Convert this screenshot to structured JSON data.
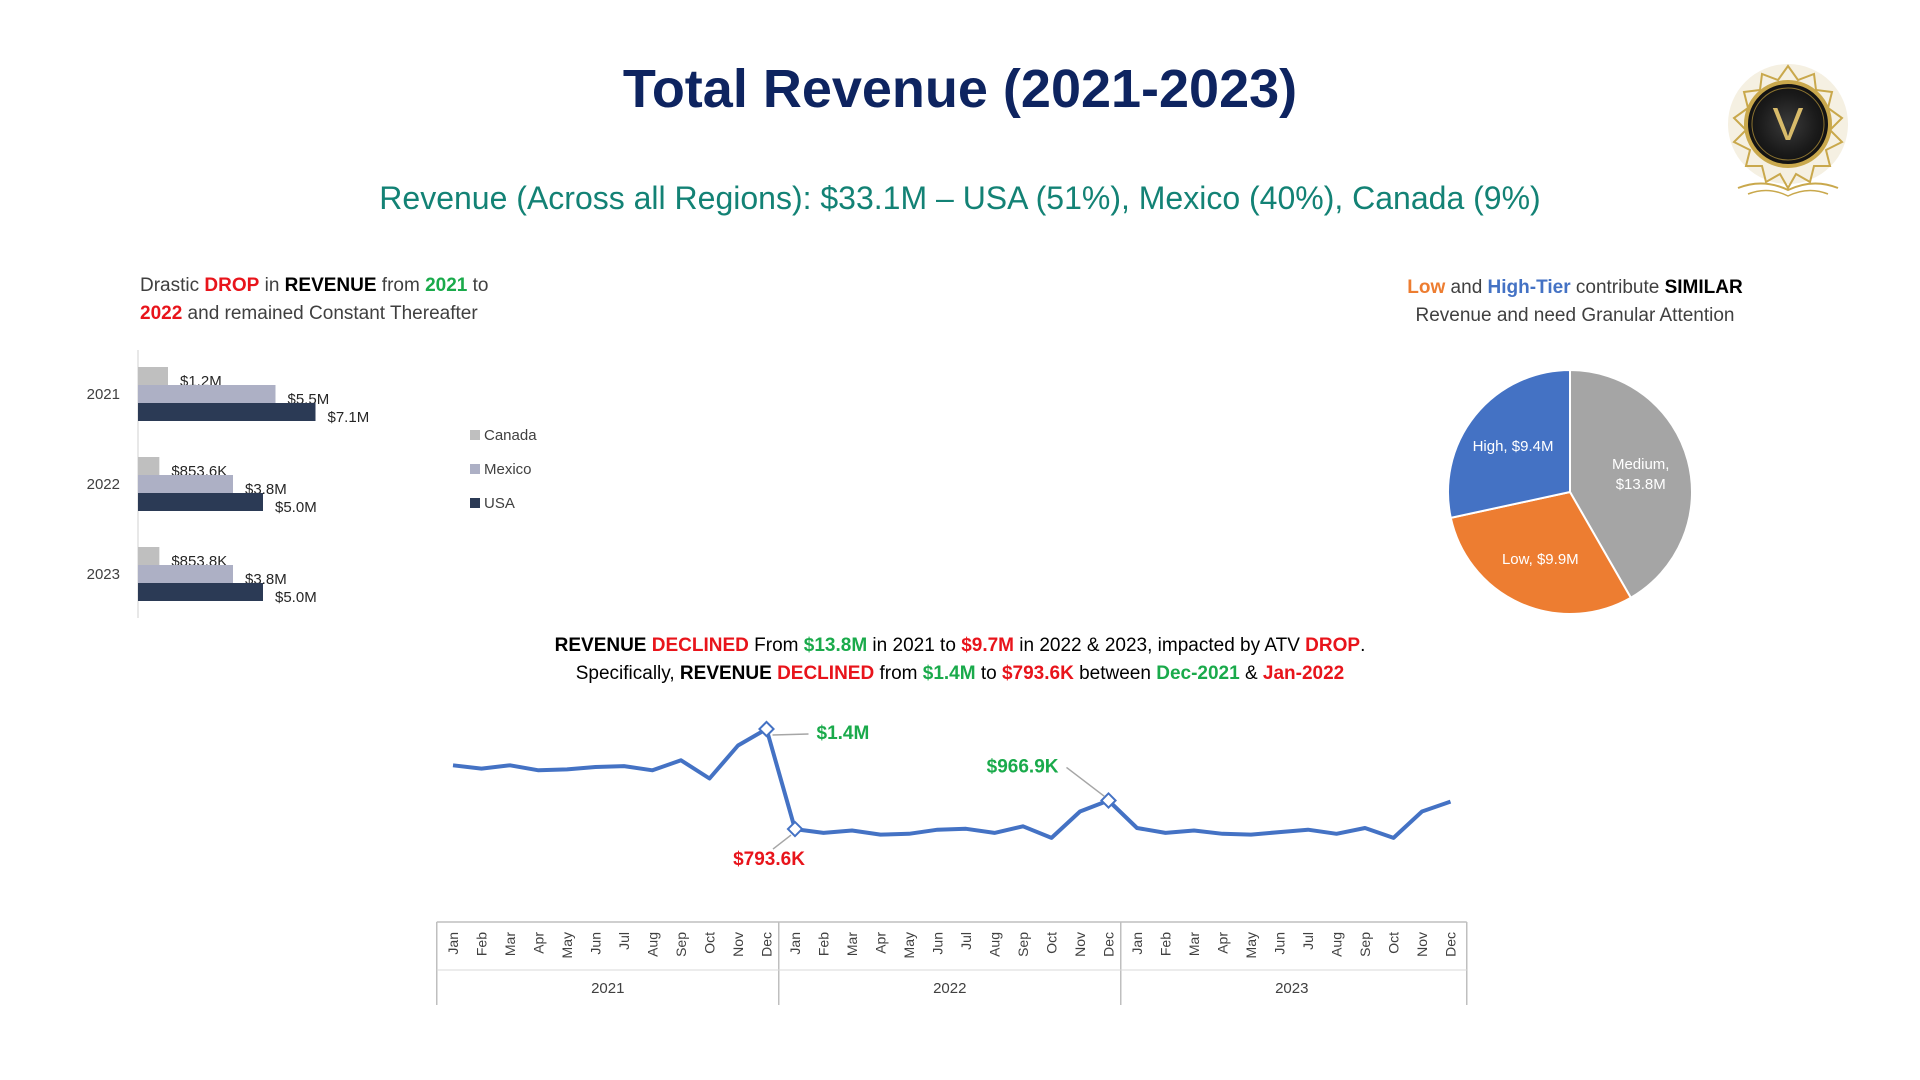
{
  "title": "Total Revenue (2021-2023)",
  "subtitle": "Revenue (Across all Regions): $33.1M – USA (51%), Mexico (40%), Canada (9%)",
  "logo": {
    "letter": "V",
    "icon": "laurel-v-logo-icon"
  },
  "bar_caption": {
    "t1": "Drastic ",
    "t2": "DROP",
    "t3": " in ",
    "t4": "REVENUE",
    "t5": " from ",
    "t6": "2021",
    "t7": " to",
    "t8": "2022",
    "t9": " and remained Constant Thereafter"
  },
  "pie_caption": {
    "t1": "Low",
    "t2": " and ",
    "t3": "High-Tier",
    "t4": " contribute ",
    "t5": "SIMILAR",
    "t6": "Revenue and need Granular Attention"
  },
  "line_caption": {
    "a1": "REVENUE",
    "a2": " ",
    "a3": "DECLINED",
    "a4": " From ",
    "a5": "$13.8M",
    "a6": " in 2021 to ",
    "a7": "$9.7M",
    "a8": " in 2022 & 2023, impacted by ATV ",
    "a9": "DROP",
    "a10": ".",
    "b1": "Specifically, ",
    "b2": "REVENUE",
    "b3": " ",
    "b4": "DECLINED",
    "b5": " from ",
    "b6": "$1.4M",
    "b7": " to ",
    "b8": "$793.6K",
    "b9": " between ",
    "b10": "Dec-2021",
    "b11": " & ",
    "b12": "Jan-2022"
  },
  "colors": {
    "title": "#0e2460",
    "subtitle": "#138275",
    "canada": "#bfbfbf",
    "mexico": "#adb0c5",
    "usa": "#2b3a55",
    "line": "#4472c4",
    "pie_high": "#4472c4",
    "pie_low": "#ed7d31",
    "pie_medium": "#a5a5a5",
    "red": "#e8141b",
    "green": "#1aaa4b"
  },
  "chart_data": [
    {
      "type": "bar",
      "orientation": "horizontal",
      "categories": [
        "2021",
        "2022",
        "2023"
      ],
      "series": [
        {
          "name": "Canada",
          "values": [
            1.2,
            0.8536,
            0.8538
          ],
          "labels": [
            "$1.2M",
            "$853.6K",
            "$853.8K"
          ]
        },
        {
          "name": "Mexico",
          "values": [
            5.5,
            3.8,
            3.8
          ],
          "labels": [
            "$5.5M",
            "$3.8M",
            "$3.8M"
          ]
        },
        {
          "name": "USA",
          "values": [
            7.1,
            5.0,
            5.0
          ],
          "labels": [
            "$7.1M",
            "$5.0M",
            "$5.0M"
          ]
        }
      ],
      "legend_position": "right",
      "xlim": [
        0,
        10
      ]
    },
    {
      "type": "pie",
      "slices": [
        {
          "name": "Medium",
          "value": 13.8,
          "label": "Medium,",
          "label2": "$13.8M"
        },
        {
          "name": "Low",
          "value": 9.9,
          "label": "Low, $9.9M"
        },
        {
          "name": "High",
          "value": 9.4,
          "label": "High, $9.4M"
        }
      ]
    },
    {
      "type": "line",
      "months": [
        "Jan",
        "Feb",
        "Mar",
        "Apr",
        "May",
        "Jun",
        "Jul",
        "Aug",
        "Sep",
        "Oct",
        "Nov",
        "Dec"
      ],
      "years": [
        "2021",
        "2022",
        "2023"
      ],
      "values": [
        1.18,
        1.16,
        1.18,
        1.15,
        1.155,
        1.17,
        1.175,
        1.15,
        1.21,
        1.1,
        1.3,
        1.4,
        0.7936,
        0.77,
        0.785,
        0.76,
        0.765,
        0.79,
        0.795,
        0.77,
        0.81,
        0.74,
        0.9,
        0.9669,
        0.8,
        0.77,
        0.785,
        0.765,
        0.76,
        0.775,
        0.79,
        0.765,
        0.8,
        0.74,
        0.9,
        0.96
      ],
      "ylim": [
        0,
        1.6
      ],
      "annotations": [
        {
          "index": 11,
          "label": "$1.4M",
          "color": "green"
        },
        {
          "index": 12,
          "label": "$793.6K",
          "color": "red"
        },
        {
          "index": 23,
          "label": "$966.9K",
          "color": "green"
        }
      ]
    }
  ]
}
